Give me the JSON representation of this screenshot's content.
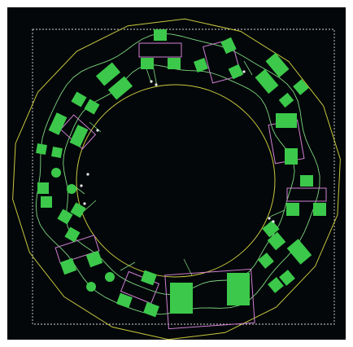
{
  "colors": {
    "background": "#03070a",
    "frame": "#ffffff",
    "selection_box": "#d9d9d9",
    "outline": "#c8c83c",
    "trace": "#7ed67e",
    "pad": "#3cc84a",
    "silkscreen": "#d27fd2",
    "via": "#e8e8e8"
  },
  "board": {
    "layer": "top-copper",
    "shape": "ring",
    "component_count": 34
  }
}
